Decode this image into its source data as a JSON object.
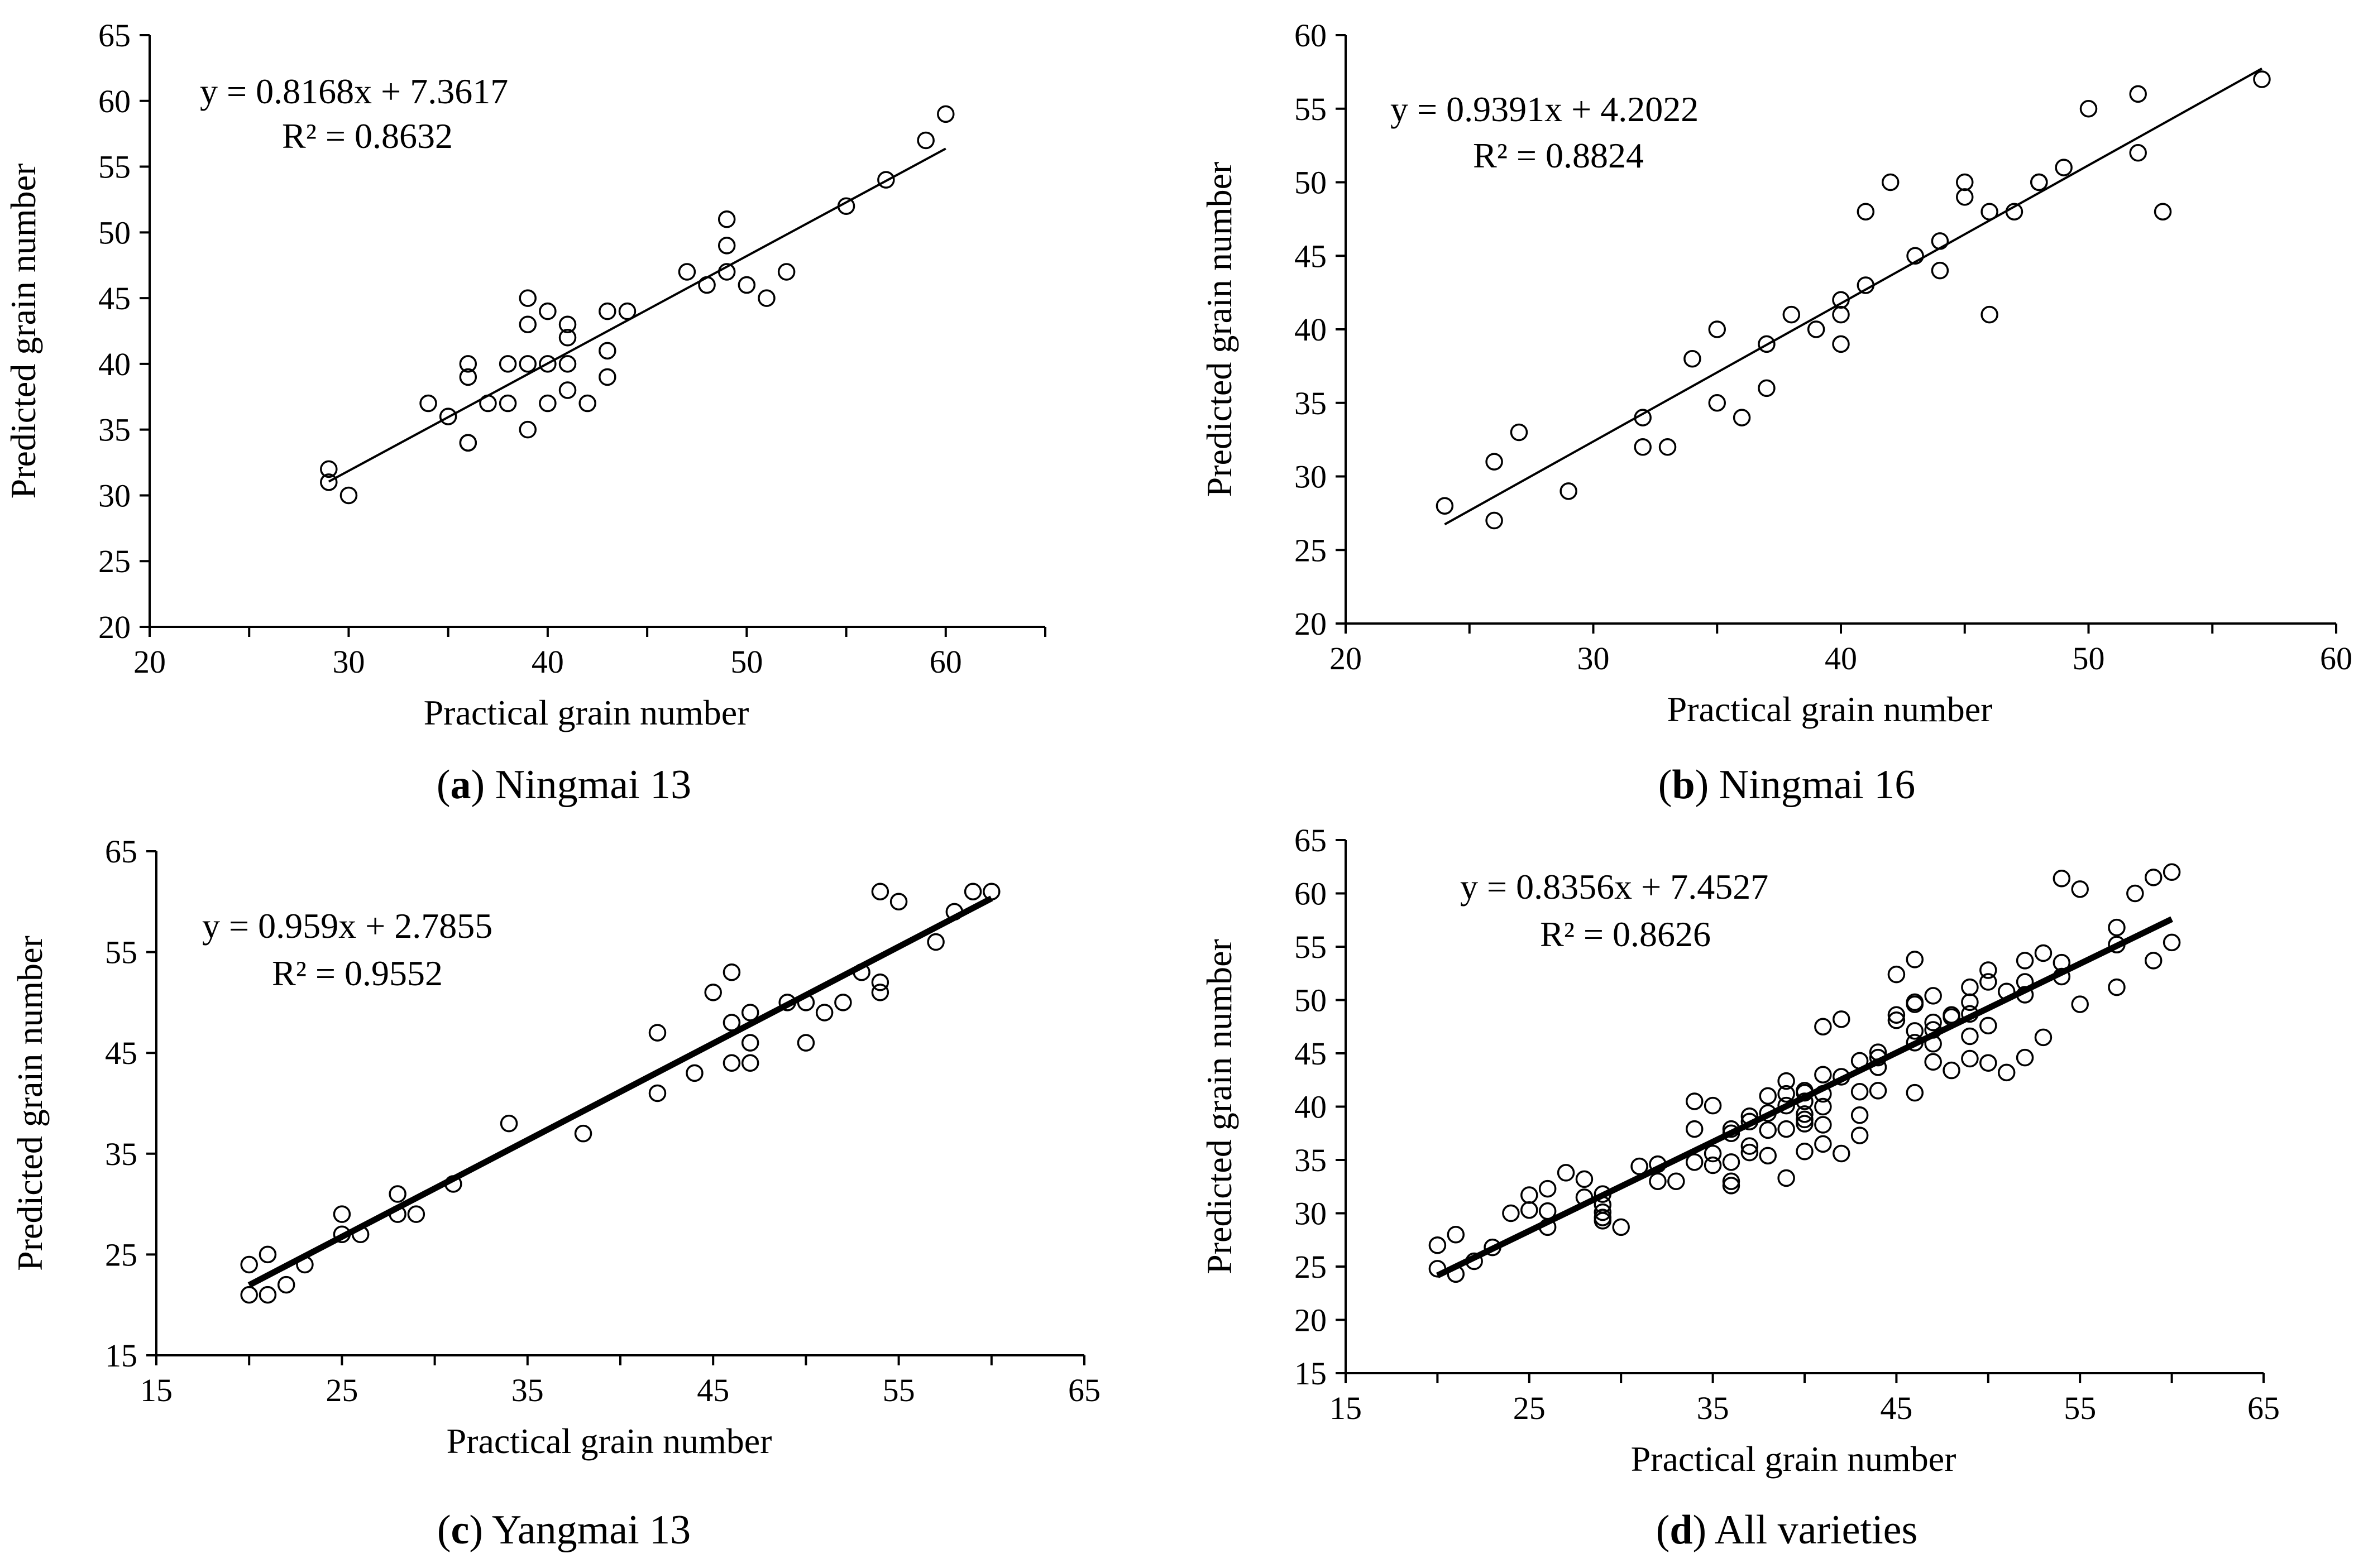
{
  "figure": {
    "panels": [
      {
        "id": "a",
        "caption_open": "(",
        "caption_letter": "a",
        "caption_close": ")",
        "caption_text": " Ningmai 13"
      },
      {
        "id": "b",
        "caption_open": "(",
        "caption_letter": "b",
        "caption_close": ")",
        "caption_text": " Ningmai 16"
      },
      {
        "id": "c",
        "caption_open": "(",
        "caption_letter": "c",
        "caption_close": ")",
        "caption_text": " Yangmai 13"
      },
      {
        "id": "d",
        "caption_open": "(",
        "caption_letter": "d",
        "caption_close": ")",
        "caption_text": " All varieties"
      }
    ]
  },
  "chart_data": [
    {
      "type": "scatter",
      "title": "(a) Ningmai 13",
      "xlabel": "Practical grain number",
      "ylabel": "Predicted grain number",
      "xlim": [
        20,
        65
      ],
      "ylim": [
        20,
        65
      ],
      "xticks": [
        20,
        30,
        40,
        50,
        60
      ],
      "yticks": [
        20,
        25,
        30,
        35,
        40,
        45,
        50,
        55,
        60,
        65
      ],
      "xminor": 5,
      "equation": "y = 0.8168x + 7.3617",
      "r_squared": "R² = 0.8632",
      "fit": {
        "slope": 0.8168,
        "intercept": 7.3617,
        "x_range": [
          29,
          60
        ]
      },
      "points": [
        [
          29,
          32
        ],
        [
          29,
          31
        ],
        [
          30,
          30
        ],
        [
          34,
          37
        ],
        [
          35,
          36
        ],
        [
          36,
          40
        ],
        [
          36,
          39
        ],
        [
          36,
          34
        ],
        [
          36,
          34
        ],
        [
          37,
          37
        ],
        [
          38,
          37
        ],
        [
          38,
          40
        ],
        [
          39,
          45
        ],
        [
          39,
          43
        ],
        [
          39,
          40
        ],
        [
          39,
          35
        ],
        [
          40,
          44
        ],
        [
          40,
          40
        ],
        [
          40,
          37
        ],
        [
          41,
          43
        ],
        [
          41,
          42
        ],
        [
          41,
          40
        ],
        [
          41,
          38
        ],
        [
          42,
          37
        ],
        [
          43,
          44
        ],
        [
          43,
          41
        ],
        [
          43,
          39
        ],
        [
          44,
          44
        ],
        [
          47,
          47
        ],
        [
          48,
          46
        ],
        [
          49,
          51
        ],
        [
          49,
          49
        ],
        [
          49,
          47
        ],
        [
          50,
          46
        ],
        [
          51,
          45
        ],
        [
          52,
          47
        ],
        [
          55,
          52
        ],
        [
          57,
          54
        ],
        [
          59,
          57
        ],
        [
          60,
          59
        ]
      ]
    },
    {
      "type": "scatter",
      "title": "(b) Ningmai 16",
      "xlabel": "Practical grain number",
      "ylabel": "Predicted grain number",
      "xlim": [
        20,
        60
      ],
      "ylim": [
        20,
        60
      ],
      "xticks": [
        20,
        30,
        40,
        50,
        60
      ],
      "yticks": [
        20,
        25,
        30,
        35,
        40,
        45,
        50,
        55,
        60
      ],
      "xminor": 5,
      "equation": "y = 0.9391x + 4.2022",
      "r_squared": "R² = 0.8824",
      "fit": {
        "slope": 0.9391,
        "intercept": 4.2022,
        "x_range": [
          24,
          57
        ]
      },
      "points": [
        [
          24,
          28
        ],
        [
          26,
          31
        ],
        [
          26,
          27
        ],
        [
          27,
          33
        ],
        [
          29,
          29
        ],
        [
          32,
          34
        ],
        [
          32,
          32
        ],
        [
          33,
          32
        ],
        [
          34,
          38
        ],
        [
          35,
          40
        ],
        [
          35,
          35
        ],
        [
          36,
          34
        ],
        [
          37,
          39
        ],
        [
          37,
          36
        ],
        [
          38,
          41
        ],
        [
          39,
          40
        ],
        [
          40,
          42
        ],
        [
          40,
          41
        ],
        [
          40,
          39
        ],
        [
          41,
          48
        ],
        [
          41,
          43
        ],
        [
          42,
          50
        ],
        [
          43,
          45
        ],
        [
          44,
          46
        ],
        [
          44,
          44
        ],
        [
          45,
          50
        ],
        [
          45,
          49
        ],
        [
          46,
          48
        ],
        [
          46,
          41
        ],
        [
          47,
          48
        ],
        [
          48,
          50
        ],
        [
          48,
          50
        ],
        [
          49,
          51
        ],
        [
          50,
          55
        ],
        [
          52,
          56
        ],
        [
          52,
          52
        ],
        [
          53,
          48
        ],
        [
          57,
          57
        ]
      ]
    },
    {
      "type": "scatter",
      "title": "(c) Yangmai 13",
      "xlabel": "Practical grain number",
      "ylabel": "Predicted grain number",
      "xlim": [
        15,
        65
      ],
      "ylim": [
        15,
        65
      ],
      "xticks": [
        15,
        25,
        35,
        45,
        55,
        65
      ],
      "yticks": [
        15,
        25,
        35,
        45,
        55,
        65
      ],
      "xminor": 5,
      "equation": "y = 0.959x + 2.7855",
      "r_squared": "R² = 0.9552",
      "fit": {
        "slope": 0.959,
        "intercept": 2.7855,
        "x_range": [
          20,
          60
        ]
      },
      "points": [
        [
          20,
          24
        ],
        [
          20,
          21
        ],
        [
          21,
          25
        ],
        [
          21,
          21
        ],
        [
          22,
          22
        ],
        [
          23,
          24
        ],
        [
          25,
          29
        ],
        [
          25,
          27
        ],
        [
          26,
          27
        ],
        [
          28,
          31
        ],
        [
          28,
          29
        ],
        [
          29,
          29
        ],
        [
          31,
          32
        ],
        [
          34,
          38
        ],
        [
          38,
          37
        ],
        [
          42,
          47
        ],
        [
          42,
          41
        ],
        [
          44,
          43
        ],
        [
          45,
          51
        ],
        [
          46,
          53
        ],
        [
          46,
          48
        ],
        [
          46,
          44
        ],
        [
          47,
          49
        ],
        [
          47,
          46
        ],
        [
          47,
          44
        ],
        [
          49,
          50
        ],
        [
          50,
          50
        ],
        [
          50,
          46
        ],
        [
          51,
          49
        ],
        [
          52,
          50
        ],
        [
          53,
          53
        ],
        [
          54,
          61
        ],
        [
          54,
          52
        ],
        [
          54,
          51
        ],
        [
          55,
          60
        ],
        [
          57,
          56
        ],
        [
          58,
          59
        ],
        [
          59,
          61
        ],
        [
          60,
          61
        ]
      ]
    },
    {
      "type": "scatter",
      "title": "(d) All varieties",
      "xlabel": "Practical grain number",
      "ylabel": "Predicted grain number",
      "xlim": [
        15,
        65
      ],
      "ylim": [
        15,
        65
      ],
      "xticks": [
        15,
        25,
        35,
        45,
        55,
        65
      ],
      "yticks": [
        15,
        20,
        25,
        30,
        35,
        40,
        45,
        50,
        55,
        60,
        65
      ],
      "xminor": 5,
      "equation": "y = 0.8356x + 7.4527",
      "r_squared": "R² = 0.8626",
      "fit": {
        "slope": 0.8356,
        "intercept": 7.4527,
        "x_range": [
          20,
          60
        ]
      },
      "points": [
        [
          20,
          27
        ],
        [
          20,
          24.8
        ],
        [
          21,
          28
        ],
        [
          21,
          24.3
        ],
        [
          22,
          25.5
        ],
        [
          23,
          26.8
        ],
        [
          24,
          30
        ],
        [
          25,
          31.7
        ],
        [
          25,
          30.3
        ],
        [
          26,
          32.3
        ],
        [
          26,
          30.2
        ],
        [
          26,
          28.7
        ],
        [
          27,
          33.8
        ],
        [
          28,
          33.2
        ],
        [
          28,
          31.5
        ],
        [
          29,
          31.8
        ],
        [
          29,
          30.8
        ],
        [
          29,
          30.1
        ],
        [
          29,
          29.6
        ],
        [
          29,
          29.3
        ],
        [
          30,
          28.7
        ],
        [
          31,
          34.4
        ],
        [
          32,
          34.6
        ],
        [
          32,
          33
        ],
        [
          33,
          33
        ],
        [
          34,
          40.5
        ],
        [
          34,
          37.9
        ],
        [
          34,
          34.8
        ],
        [
          35,
          40.1
        ],
        [
          35,
          35.6
        ],
        [
          35,
          34.5
        ],
        [
          36,
          37.9
        ],
        [
          36,
          37.5
        ],
        [
          36,
          34.8
        ],
        [
          36,
          33
        ],
        [
          36,
          32.6
        ],
        [
          37,
          39.1
        ],
        [
          37,
          38.6
        ],
        [
          37,
          36.3
        ],
        [
          37,
          35.7
        ],
        [
          38,
          41
        ],
        [
          38,
          39.4
        ],
        [
          38,
          37.8
        ],
        [
          38,
          35.4
        ],
        [
          39,
          42.4
        ],
        [
          39,
          41.2
        ],
        [
          39,
          40.1
        ],
        [
          39,
          37.9
        ],
        [
          39,
          33.3
        ],
        [
          40,
          41.5
        ],
        [
          40,
          41.3
        ],
        [
          40,
          40.5
        ],
        [
          40,
          39.3
        ],
        [
          40,
          38.8
        ],
        [
          40,
          38.4
        ],
        [
          40,
          35.8
        ],
        [
          41,
          47.5
        ],
        [
          41,
          43
        ],
        [
          41,
          41.2
        ],
        [
          41,
          40
        ],
        [
          41,
          38.3
        ],
        [
          41,
          36.5
        ],
        [
          42,
          48.2
        ],
        [
          42,
          42.8
        ],
        [
          42,
          35.6
        ],
        [
          43,
          44.3
        ],
        [
          43,
          41.4
        ],
        [
          43,
          39.2
        ],
        [
          43,
          37.3
        ],
        [
          44,
          45.1
        ],
        [
          44,
          44.6
        ],
        [
          44,
          43.7
        ],
        [
          44,
          41.5
        ],
        [
          45,
          52.4
        ],
        [
          45,
          48.6
        ],
        [
          45,
          48.1
        ],
        [
          46,
          53.8
        ],
        [
          46,
          49.8
        ],
        [
          46,
          49.6
        ],
        [
          46,
          47.1
        ],
        [
          46,
          46
        ],
        [
          46,
          41.3
        ],
        [
          47,
          50.4
        ],
        [
          47,
          47.9
        ],
        [
          47,
          47.2
        ],
        [
          47,
          45.9
        ],
        [
          47,
          44.2
        ],
        [
          48,
          48.6
        ],
        [
          48,
          48.4
        ],
        [
          48,
          43.4
        ],
        [
          49,
          51.2
        ],
        [
          49,
          49.8
        ],
        [
          49,
          48.7
        ],
        [
          49,
          46.6
        ],
        [
          49,
          44.5
        ],
        [
          50,
          52.8
        ],
        [
          50,
          51.7
        ],
        [
          50,
          47.6
        ],
        [
          50,
          44.1
        ],
        [
          51,
          50.8
        ],
        [
          51,
          43.2
        ],
        [
          52,
          53.7
        ],
        [
          52,
          51.7
        ],
        [
          52,
          50.5
        ],
        [
          52,
          44.6
        ],
        [
          53,
          54.4
        ],
        [
          53,
          46.5
        ],
        [
          54,
          61.4
        ],
        [
          54,
          53.5
        ],
        [
          54,
          52.2
        ],
        [
          55,
          60.4
        ],
        [
          55,
          49.6
        ],
        [
          57,
          56.8
        ],
        [
          57,
          55.2
        ],
        [
          57,
          51.2
        ],
        [
          58,
          60
        ],
        [
          59,
          61.5
        ],
        [
          59,
          53.7
        ],
        [
          60,
          62
        ],
        [
          60,
          55.4
        ]
      ]
    }
  ]
}
